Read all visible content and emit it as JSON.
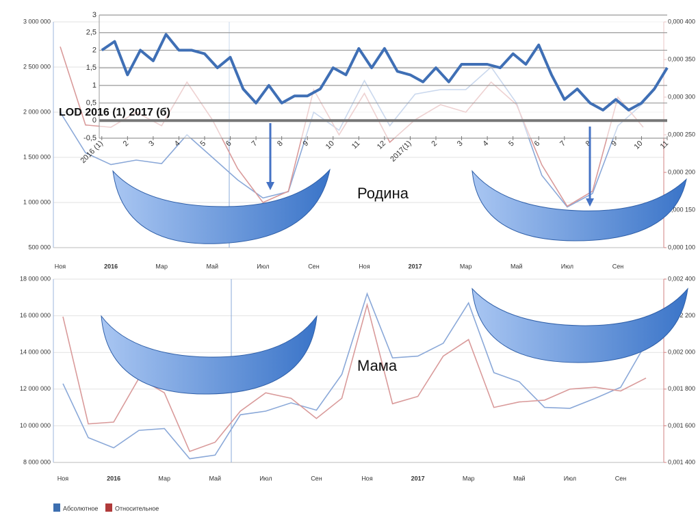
{
  "chart_data": [
    {
      "type": "line",
      "annotation": "Родина",
      "categories": [
        "Ноя",
        null,
        "2016",
        null,
        "Мар",
        null,
        "Май",
        null,
        "Июл",
        null,
        "Сен",
        null,
        "Ноя",
        null,
        "2017",
        null,
        "Мар",
        null,
        "Май",
        null,
        "Июл",
        null,
        "Сен",
        null
      ],
      "series": [
        {
          "color": "#8aa8d8",
          "values": [
            2000000,
            1550000,
            1420000,
            1470000,
            1430000,
            1750000,
            1500000,
            1250000,
            1050000,
            1120000,
            2000000,
            1800000,
            2350000,
            1850000,
            2200000,
            2250000,
            2250000,
            2500000,
            2100000,
            1300000,
            950000,
            1100000,
            1850000,
            2100000
          ]
        },
        {
          "color": "#d99a9a",
          "axis": "y2",
          "values": [
            0.000367,
            0.000263,
            0.00026,
            0.00028,
            0.000262,
            0.00032,
            0.00027,
            0.000205,
            0.00016,
            0.000175,
            0.00031,
            0.00025,
            0.000305,
            0.00024,
            0.00027,
            0.00029,
            0.00028,
            0.00032,
            0.00029,
            0.00021,
            0.000155,
            0.000175,
            0.0003,
            0.00026
          ]
        }
      ],
      "ylim": [
        500000,
        3000000
      ],
      "yticks": [
        {
          "value": 3000000,
          "label": "3 000 000"
        },
        {
          "value": 2500000,
          "label": "2 500 000"
        },
        {
          "value": 2000000,
          "label": "2 000 000"
        },
        {
          "value": 1500000,
          "label": "1 500 000"
        },
        {
          "value": 1000000,
          "label": "1 000 000"
        },
        {
          "value": 500000,
          "label": "500 000"
        }
      ],
      "y2lim": [
        0.0001,
        0.0004
      ],
      "y2ticks": [
        {
          "value": 0.0004,
          "label": "0,000 400"
        },
        {
          "value": 0.00035,
          "label": "0,000 350"
        },
        {
          "value": 0.0003,
          "label": "0,000 300"
        },
        {
          "value": 0.00025,
          "label": "0,000 250"
        },
        {
          "value": 0.0002,
          "label": "0,000 200"
        },
        {
          "value": 0.00015,
          "label": "0,000 150"
        },
        {
          "value": 0.0001,
          "label": "0,000 100"
        }
      ],
      "grid": true
    },
    {
      "type": "lod",
      "title": "LOD 2016 (1) 2017 (б)",
      "xlim": [
        0.9,
        23
      ],
      "xticks": [
        {
          "value": 1,
          "label": "2016 (1)"
        },
        2,
        3,
        4,
        5,
        6,
        7,
        8,
        9,
        10,
        11,
        12,
        {
          "value": 13,
          "label": "2017(1)"
        },
        {
          "value": 14,
          "label": "2"
        },
        {
          "value": 15,
          "label": "3"
        },
        {
          "value": 16,
          "label": "4"
        },
        {
          "value": 17,
          "label": "5"
        },
        {
          "value": 18,
          "label": "6"
        },
        {
          "value": 19,
          "label": "7"
        },
        {
          "value": 20,
          "label": "8"
        },
        {
          "value": 21,
          "label": "9"
        },
        {
          "value": 22,
          "label": "10"
        },
        {
          "value": 23,
          "label": "11"
        }
      ],
      "series": [
        {
          "color": "#3f6fb5",
          "x": [
            1,
            1.5,
            2,
            2.5,
            3,
            3.5,
            4,
            4.5,
            5,
            5.5,
            6,
            6.5,
            7,
            7.5,
            8,
            8.5,
            9,
            9.5,
            10,
            10.5,
            11,
            11.5,
            12,
            12.5,
            13,
            13.5,
            14,
            14.5,
            15,
            15.5,
            16,
            16.5,
            17,
            17.5,
            18,
            18.5,
            19,
            19.5,
            20,
            20.5,
            21,
            21.5,
            22,
            22.5,
            23
          ],
          "values": [
            2.0,
            2.25,
            1.3,
            2.0,
            1.7,
            2.45,
            2.0,
            2.0,
            1.9,
            1.5,
            1.8,
            0.9,
            0.5,
            1.0,
            0.5,
            0.7,
            0.7,
            0.9,
            1.5,
            1.3,
            2.05,
            1.5,
            2.05,
            1.4,
            1.3,
            1.1,
            1.5,
            1.1,
            1.6,
            1.6,
            1.6,
            1.5,
            1.9,
            1.6,
            2.15,
            1.3,
            0.6,
            0.9,
            0.5,
            0.3,
            0.6,
            0.3,
            0.5,
            0.9,
            1.5
          ]
        }
      ],
      "ylim": [
        -0.5,
        3
      ],
      "yticks": [
        3,
        {
          "value": 2.5,
          "label": "2,5"
        },
        2,
        {
          "value": 1.5,
          "label": "1,5"
        },
        1,
        {
          "value": 0.5,
          "label": "0,5"
        },
        0,
        {
          "value": -0.5,
          "label": "-0,5"
        }
      ],
      "grid": true
    },
    {
      "type": "line",
      "annotation": "Мама",
      "categories": [
        "Ноя",
        null,
        "2016",
        null,
        "Мар",
        null,
        "Май",
        null,
        "Июл",
        null,
        "Сен",
        null,
        "Ноя",
        null,
        "2017",
        null,
        "Мар",
        null,
        "Май",
        null,
        "Июл",
        null,
        "Сен",
        null
      ],
      "series": [
        {
          "name": "Абсолютное",
          "color": "#8aa8d8",
          "legend_color": "#3d6fb0",
          "values": [
            12300000,
            9350000,
            8800000,
            9750000,
            9850000,
            8200000,
            8400000,
            10600000,
            10800000,
            11250000,
            10850000,
            12800000,
            17200000,
            13700000,
            13800000,
            14500000,
            16700000,
            12900000,
            12400000,
            11000000,
            10950000,
            11500000,
            12100000,
            14500000
          ]
        },
        {
          "name": "Относительное",
          "color": "#d99a9a",
          "legend_color": "#b03a3a",
          "axis": "y2",
          "values": [
            0.002195,
            0.00161,
            0.00162,
            0.00186,
            0.00178,
            0.00146,
            0.00151,
            0.00168,
            0.00178,
            0.00175,
            0.00164,
            0.00175,
            0.00226,
            0.00172,
            0.00176,
            0.00198,
            0.00207,
            0.0017,
            0.00173,
            0.00174,
            0.0018,
            0.00181,
            0.00179,
            0.00186
          ]
        }
      ],
      "ylim": [
        8000000,
        18000000
      ],
      "yticks": [
        {
          "value": 18000000,
          "label": "18 000 000"
        },
        {
          "value": 16000000,
          "label": "16 000 000"
        },
        {
          "value": 14000000,
          "label": "14 000 000"
        },
        {
          "value": 12000000,
          "label": "12 000 000"
        },
        {
          "value": 10000000,
          "label": "10 000 000"
        },
        {
          "value": 8000000,
          "label": "8 000 000"
        }
      ],
      "y2lim": [
        0.0014,
        0.0024
      ],
      "y2ticks": [
        {
          "value": 0.0024,
          "label": "0,002 400"
        },
        {
          "value": 0.0022,
          "label": "0,002 200"
        },
        {
          "value": 0.002,
          "label": "0,002 000"
        },
        {
          "value": 0.0018,
          "label": "0,001 800"
        },
        {
          "value": 0.0016,
          "label": "0,001 600"
        },
        {
          "value": 0.0014,
          "label": "0,001 400"
        }
      ],
      "grid": true
    }
  ]
}
